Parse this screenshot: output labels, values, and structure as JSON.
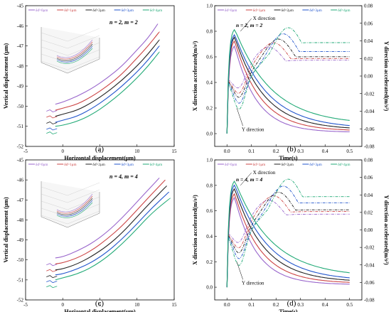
{
  "chart_data": [
    {
      "id": "a",
      "type": "line",
      "panel_label": "(a)",
      "xlabel": "Horizontal displacement(μm)",
      "ylabel": "Vertical displacement (μm)",
      "xlim": [
        -5,
        15
      ],
      "ylim": [
        -52,
        -45
      ],
      "xticks": [
        -5,
        0,
        5,
        10,
        15
      ],
      "yticks": [
        -52,
        -51,
        -50,
        -49,
        -48,
        -47,
        -46,
        -45
      ],
      "annotation": "n = 2, m = 2",
      "legend": {
        "placement": "top",
        "entries": [
          "δɗ=0μm",
          "δɗ=1μm",
          "δɗ=2μm",
          "δɗ=3μm",
          "δɗ=4μm"
        ]
      },
      "series": [
        {
          "name": "δɗ=0μm",
          "color": "#9966cc",
          "x": [
            -1,
            0,
            2,
            4,
            6,
            8,
            10,
            11.5,
            12.8
          ],
          "y": [
            -49.9,
            -49.8,
            -49.5,
            -49.1,
            -48.6,
            -48.0,
            -47.2,
            -46.6,
            -45.9
          ]
        },
        {
          "name": "δɗ=1μm",
          "color": "#cc4444",
          "x": [
            -1,
            0,
            2,
            4,
            6,
            8,
            10,
            11.5,
            13.0
          ],
          "y": [
            -50.2,
            -50.1,
            -49.9,
            -49.5,
            -49.0,
            -48.4,
            -47.6,
            -47.0,
            -46.3
          ]
        },
        {
          "name": "δɗ=2μm",
          "color": "#222222",
          "x": [
            -1,
            0,
            2,
            4,
            6,
            8,
            10,
            11.5,
            13.0
          ],
          "y": [
            -50.5,
            -50.4,
            -50.2,
            -49.8,
            -49.3,
            -48.7,
            -48.0,
            -47.4,
            -46.7
          ]
        },
        {
          "name": "δɗ=3μm",
          "color": "#2255cc",
          "x": [
            -1,
            0,
            2,
            4,
            6,
            8,
            10,
            11.5,
            13.0
          ],
          "y": [
            -50.8,
            -50.7,
            -50.5,
            -50.1,
            -49.6,
            -49.0,
            -48.3,
            -47.7,
            -47.0
          ]
        },
        {
          "name": "δɗ=4μm",
          "color": "#22aa77",
          "x": [
            -1,
            0,
            2,
            4,
            6,
            8,
            10,
            11.5,
            13.0
          ],
          "y": [
            -51.0,
            -50.95,
            -50.75,
            -50.4,
            -49.9,
            -49.3,
            -48.6,
            -48.0,
            -47.3
          ]
        }
      ]
    },
    {
      "id": "b",
      "type": "line",
      "panel_label": "(b)",
      "xlabel": "Time(s)",
      "ylabel": "X direction accelerated(m/s²)",
      "ylabel_right": "Y direction accelerated(m/s²)",
      "xlim": [
        -0.05,
        0.55
      ],
      "ylim": [
        -0.1,
        1.0
      ],
      "ylim_right": [
        -0.08,
        0.08
      ],
      "xticks": [
        0.0,
        0.1,
        0.2,
        0.3,
        0.4,
        0.5
      ],
      "yticks": [
        0.0,
        0.2,
        0.4,
        0.6,
        0.8,
        1.0
      ],
      "yticks_right": [
        -0.08,
        -0.06,
        -0.04,
        -0.02,
        0.0,
        0.02,
        0.04,
        0.06,
        0.08
      ],
      "annotation": "n = 2, m = 2",
      "annotation_x": "X direction",
      "annotation_y": "Y direction",
      "legend": {
        "placement": "top",
        "entries": [
          "δɗ=0μm",
          "δɗ=1μm",
          "δɗ=2μm",
          "δɗ=3μm",
          "δɗ=4μm"
        ]
      },
      "series": [
        {
          "name": "δɗ=0μm",
          "color": "#9966cc",
          "peak": 0.7,
          "floor": 0.01,
          "y_min": -0.017,
          "y_peak": 0.035,
          "y_tail": 0.02
        },
        {
          "name": "δɗ=1μm",
          "color": "#cc4444",
          "peak": 0.74,
          "floor": 0.02,
          "y_min": -0.021,
          "y_peak": 0.04,
          "y_tail": 0.022
        },
        {
          "name": "δɗ=2μm",
          "color": "#222222",
          "peak": 0.77,
          "floor": 0.03,
          "y_min": -0.024,
          "y_peak": 0.044,
          "y_tail": 0.024
        },
        {
          "name": "δɗ=3μm",
          "color": "#2255cc",
          "peak": 0.79,
          "floor": 0.04,
          "y_min": -0.03,
          "y_peak": 0.05,
          "y_tail": 0.03
        },
        {
          "name": "δɗ=4μm",
          "color": "#22aa77",
          "peak": 0.83,
          "floor": 0.07,
          "y_min": -0.037,
          "y_peak": 0.057,
          "y_tail": 0.04
        }
      ]
    },
    {
      "id": "c",
      "type": "line",
      "panel_label": "(c)",
      "xlabel": "Horizontal displacement(μm)",
      "ylabel": "Vertical displacement (μm)",
      "xlim": [
        -5,
        15
      ],
      "ylim": [
        -52,
        -45
      ],
      "xticks": [
        -5,
        0,
        5,
        10,
        15
      ],
      "yticks": [
        -52,
        -51,
        -50,
        -49,
        -48,
        -47,
        -46,
        -45
      ],
      "annotation": "n = 4, m = 4",
      "legend": {
        "placement": "top",
        "entries": [
          "δɗ=0μm",
          "δɗ=1μm",
          "δɗ=2μm",
          "δɗ=3μm",
          "δɗ=4μm"
        ]
      },
      "series": [
        {
          "name": "δɗ=0μm",
          "color": "#9966cc",
          "x": [
            -1,
            0,
            2,
            4,
            6,
            8,
            10,
            12,
            13.0
          ],
          "y": [
            -49.9,
            -49.85,
            -49.55,
            -49.15,
            -48.6,
            -47.9,
            -47.1,
            -46.3,
            -45.9
          ]
        },
        {
          "name": "δɗ=1μm",
          "color": "#cc4444",
          "x": [
            -1,
            0,
            2,
            4,
            6,
            8,
            10,
            12,
            13.8
          ],
          "y": [
            -50.2,
            -50.15,
            -49.9,
            -49.5,
            -48.95,
            -48.3,
            -47.5,
            -46.7,
            -46.0
          ]
        },
        {
          "name": "δɗ=2μm",
          "color": "#222222",
          "x": [
            -1,
            0,
            2,
            4,
            6,
            8,
            10,
            12,
            14.0
          ],
          "y": [
            -50.5,
            -50.45,
            -50.2,
            -49.8,
            -49.3,
            -48.65,
            -47.85,
            -47.05,
            -46.3
          ]
        },
        {
          "name": "δɗ=3μm",
          "color": "#2255cc",
          "x": [
            -1,
            0,
            2,
            4,
            6,
            8,
            10,
            12,
            14.3
          ],
          "y": [
            -50.75,
            -50.7,
            -50.45,
            -50.1,
            -49.6,
            -48.95,
            -48.2,
            -47.4,
            -46.6
          ]
        },
        {
          "name": "δɗ=4μm",
          "color": "#22aa77",
          "x": [
            -1,
            0,
            2,
            4,
            6,
            8,
            10,
            12,
            14.5
          ],
          "y": [
            -51.0,
            -50.9,
            -50.7,
            -50.35,
            -49.85,
            -49.2,
            -48.45,
            -47.65,
            -46.9
          ]
        }
      ]
    },
    {
      "id": "d",
      "type": "line",
      "panel_label": "(d)",
      "xlabel": "Time(s)",
      "ylabel": "X direction accelerated(m/s²)",
      "ylabel_right": "Y direction accelerated(m/s²)",
      "xlim": [
        -0.05,
        0.55
      ],
      "ylim": [
        -0.1,
        1.0
      ],
      "ylim_right": [
        -0.08,
        0.08
      ],
      "xticks": [
        0.0,
        0.1,
        0.2,
        0.3,
        0.4,
        0.5
      ],
      "yticks": [
        0.0,
        0.2,
        0.4,
        0.6,
        0.8,
        1.0
      ],
      "yticks_right": [
        -0.08,
        -0.06,
        -0.04,
        -0.02,
        0.0,
        0.02,
        0.04,
        0.06,
        0.08
      ],
      "annotation": "n = 4, m = 4",
      "annotation_x": "X direction",
      "annotation_y": "Y direction",
      "legend": {
        "placement": "top",
        "entries": [
          "δɗ=0μm",
          "δɗ=1μm",
          "δɗ=2μm",
          "δɗ=3μm",
          "δɗ=4μm"
        ]
      },
      "series": [
        {
          "name": "δɗ=0μm",
          "color": "#9966cc",
          "peak": 0.72,
          "floor": 0.02,
          "y_min": -0.018,
          "y_peak": 0.036,
          "y_tail": 0.02
        },
        {
          "name": "δɗ=1μm",
          "color": "#cc4444",
          "peak": 0.75,
          "floor": 0.03,
          "y_min": -0.022,
          "y_peak": 0.041,
          "y_tail": 0.023
        },
        {
          "name": "δɗ=2μm",
          "color": "#222222",
          "peak": 0.79,
          "floor": 0.04,
          "y_min": -0.026,
          "y_peak": 0.045,
          "y_tail": 0.025
        },
        {
          "name": "δɗ=3μm",
          "color": "#2255cc",
          "peak": 0.82,
          "floor": 0.05,
          "y_min": -0.032,
          "y_peak": 0.052,
          "y_tail": 0.033
        },
        {
          "name": "δɗ=4μm",
          "color": "#22aa77",
          "peak": 0.85,
          "floor": 0.08,
          "y_min": -0.04,
          "y_peak": 0.06,
          "y_tail": 0.04
        }
      ]
    }
  ]
}
